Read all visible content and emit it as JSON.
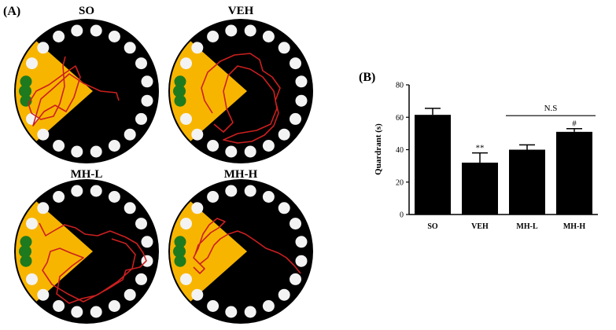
{
  "figure": {
    "panel_a_label": "(A)",
    "panel_b_label": "(B)"
  },
  "mazes": [
    {
      "title": "SO"
    },
    {
      "title": "VEH"
    },
    {
      "title": "MH-L"
    },
    {
      "title": "MH-H"
    }
  ],
  "colors": {
    "maze_background": "#000000",
    "hole": "#f3f3f3",
    "target_quadrant": "#f7b500",
    "target_hole": "#1e7a1e",
    "track": "#cc1f1f",
    "bar": "#000000"
  },
  "chart_data": {
    "type": "bar",
    "categories": [
      "SO",
      "VEH",
      "MH-L",
      "MH-H"
    ],
    "values": [
      61.5,
      32,
      40,
      51
    ],
    "errors": [
      4,
      6,
      3,
      2
    ],
    "ylabel": "Quardrant (s)",
    "xlabel": "",
    "ylim": [
      0,
      80
    ],
    "yticks": [
      0,
      20,
      40,
      60,
      80
    ],
    "significance": [
      {
        "category": "VEH",
        "text": "**"
      },
      {
        "category": "MH-H",
        "text": "#"
      }
    ],
    "bracket": {
      "text": "N.S",
      "from": "MH-L",
      "to": "MH-H"
    }
  }
}
